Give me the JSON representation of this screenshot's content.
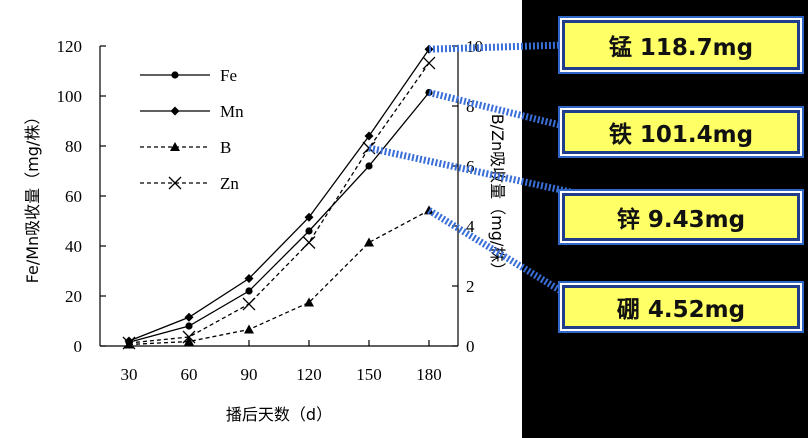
{
  "chart_data": {
    "type": "line",
    "xlabel": "播后天数（d）",
    "ylabel_left": "Fe/Mn吸收量（mg/株）",
    "ylabel_right": "B/Zn吸收量（mg/株）",
    "x": [
      30,
      60,
      90,
      120,
      150,
      180
    ],
    "x_ticks": [
      "30",
      "60",
      "90",
      "120",
      "150",
      "180"
    ],
    "y_left_ticks": [
      "0",
      "20",
      "40",
      "60",
      "80",
      "100",
      "120"
    ],
    "y_right_ticks": [
      "0",
      "2",
      "4",
      "6",
      "8",
      "10"
    ],
    "ylim_left": [
      0,
      120
    ],
    "ylim_right": [
      0,
      10
    ],
    "series": [
      {
        "name": "Fe",
        "axis": "left",
        "style": "solid",
        "marker": "circle",
        "values": [
          1.5,
          8,
          22,
          46,
          72,
          101.4
        ]
      },
      {
        "name": "Mn",
        "axis": "left",
        "style": "solid",
        "marker": "diamond",
        "values": [
          2,
          11.5,
          27,
          51.5,
          84,
          118.7
        ]
      },
      {
        "name": "B",
        "axis": "right",
        "style": "dashed",
        "marker": "triangle",
        "values": [
          0.05,
          0.15,
          0.55,
          1.45,
          3.45,
          4.52
        ]
      },
      {
        "name": "Zn",
        "axis": "right",
        "style": "dashed",
        "marker": "x",
        "values": [
          0.1,
          0.3,
          1.4,
          3.45,
          6.6,
          9.43
        ]
      }
    ],
    "legend_position": "top-left",
    "grid": false
  },
  "callouts": [
    {
      "id": "mn",
      "text": "锰 118.7mg"
    },
    {
      "id": "fe",
      "text": "铁 101.4mg"
    },
    {
      "id": "zn",
      "text": "锌  9.43mg"
    },
    {
      "id": "b",
      "text": "硼  4.52mg"
    }
  ],
  "colors": {
    "callout_fill": "#ffff66",
    "callout_border": "#1f3d8a",
    "leader_line": "#3a6fd8",
    "background": "#000000",
    "plot_background": "#ffffff"
  }
}
